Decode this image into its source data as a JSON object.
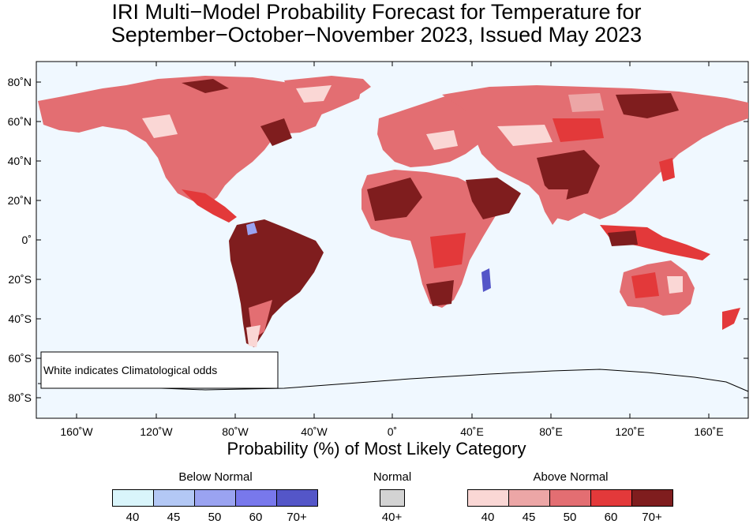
{
  "title_line1": "IRI Multi−Model Probability Forecast for Temperature for",
  "title_line2": "September−October−November 2023, Issued May 2023",
  "xlabel": "Probability (%) of Most Likely Category",
  "annotation": "White indicates Climatological odds",
  "lat_labels": [
    "80˚N",
    "60˚N",
    "40˚N",
    "20˚N",
    "0˚",
    "20˚S",
    "40˚S",
    "60˚S",
    "80˚S"
  ],
  "lon_labels": [
    "160˚W",
    "120˚W",
    "80˚W",
    "40˚W",
    "0˚",
    "40˚E",
    "80˚E",
    "120˚E",
    "160˚E"
  ],
  "legend": {
    "below": {
      "title": "Below Normal",
      "ticks": [
        "40",
        "45",
        "50",
        "60",
        "70+"
      ],
      "colors": [
        "#d9f5fb",
        "#b3c8f5",
        "#9aa3f1",
        "#7878ec",
        "#5456c8"
      ]
    },
    "normal": {
      "title": "Normal",
      "ticks": [
        "40+"
      ],
      "colors": [
        "#d3d3d3"
      ]
    },
    "above": {
      "title": "Above Normal",
      "ticks": [
        "40",
        "45",
        "50",
        "60",
        "70+"
      ],
      "colors": [
        "#fad7d5",
        "#eca6a6",
        "#e36e72",
        "#e3393a",
        "#7f1d1e"
      ]
    }
  },
  "colors": {
    "ocean": "#f0f8ff",
    "land_base": "#e36e72"
  }
}
